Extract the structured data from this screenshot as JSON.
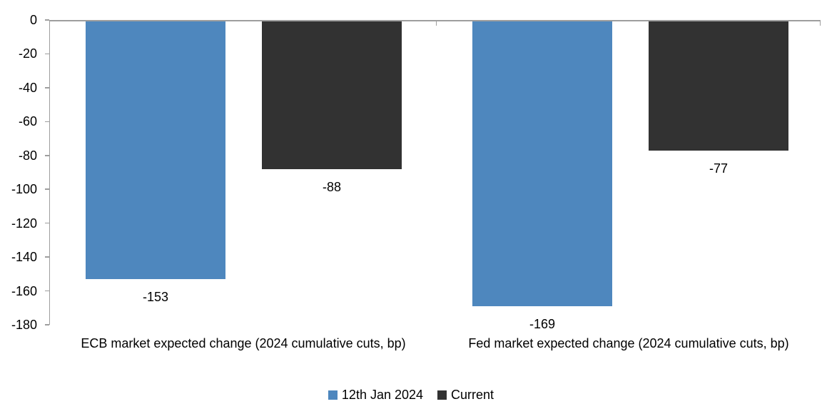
{
  "chart_data": {
    "type": "bar",
    "categories": [
      "ECB market expected change (2024 cumulative cuts, bp)",
      "Fed market expected change (2024 cumulative cuts, bp)"
    ],
    "series": [
      {
        "name": "12th Jan 2024",
        "color": "#4E87BE",
        "values": [
          -153,
          -169
        ]
      },
      {
        "name": "Current",
        "color": "#323232",
        "values": [
          -88,
          -77
        ]
      }
    ],
    "ylim": [
      -180,
      0
    ],
    "yticks": [
      0,
      -20,
      -40,
      -60,
      -80,
      -100,
      -120,
      -140,
      -160,
      -180
    ],
    "xlabel": "",
    "ylabel": "",
    "grid": false,
    "data_labels": true,
    "legend_position": "bottom",
    "axis_color": "#9E9E9E",
    "text_color": "#000000",
    "background": "#FFFFFF"
  }
}
